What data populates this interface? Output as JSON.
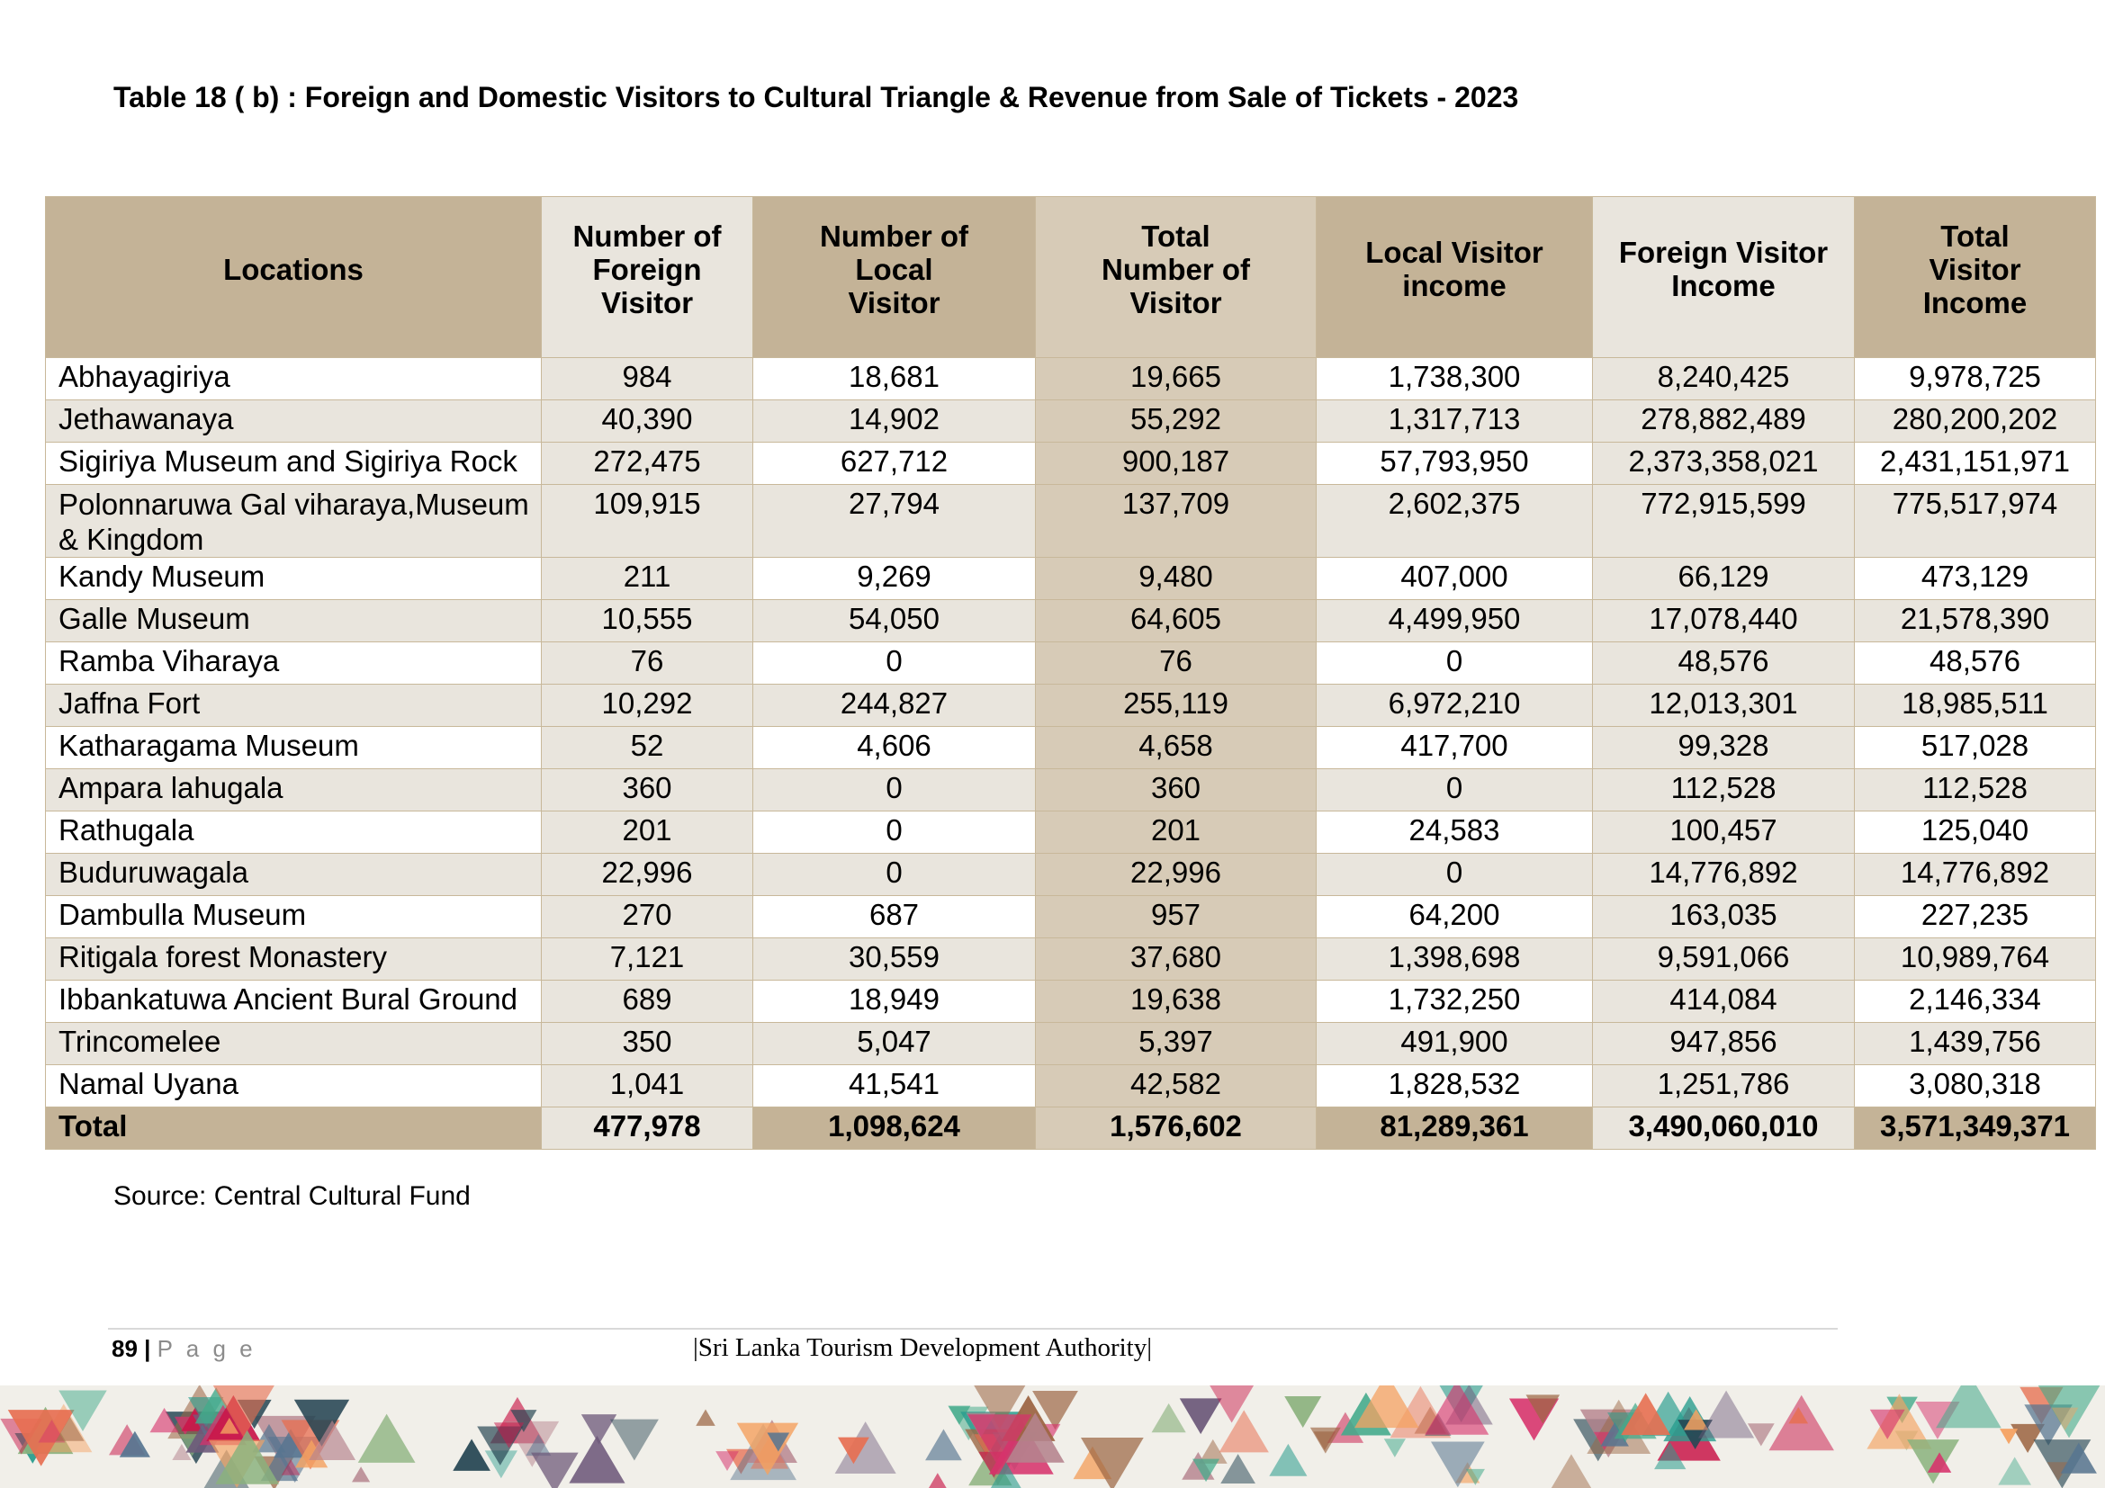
{
  "title": "Table 18 ( b) : Foreign and Domestic Visitors to Cultural Triangle & Revenue from Sale of Tickets - 2023",
  "table": {
    "headers": [
      "Locations",
      "Number of Foreign Visitor",
      "Number of Local Visitor",
      "Total Number of Visitor",
      "Local Visitor income",
      "Foreign Visitor Income",
      "Total Visitor Income"
    ],
    "header_lines": [
      [
        "Locations"
      ],
      [
        "Number of",
        "Foreign",
        "Visitor"
      ],
      [
        "Number of",
        "Local",
        "Visitor"
      ],
      [
        "Total",
        "Number of",
        "Visitor"
      ],
      [
        "Local Visitor",
        "income"
      ],
      [
        "Foreign Visitor",
        "Income"
      ],
      [
        "Total",
        "Visitor",
        "Income"
      ]
    ],
    "rows": [
      [
        "Abhayagiriya",
        "984",
        "18,681",
        "19,665",
        "1,738,300",
        "8,240,425",
        "9,978,725"
      ],
      [
        "Jethawanaya",
        "40,390",
        "14,902",
        "55,292",
        "1,317,713",
        "278,882,489",
        "280,200,202"
      ],
      [
        "Sigiriya Museum and Sigiriya Rock",
        "272,475",
        "627,712",
        "900,187",
        "57,793,950",
        "2,373,358,021",
        "2,431,151,971"
      ],
      [
        "Polonnaruwa Gal viharaya,Museum & Kingdom",
        "109,915",
        "27,794",
        "137,709",
        "2,602,375",
        "772,915,599",
        "775,517,974"
      ],
      [
        "Kandy Museum",
        "211",
        "9,269",
        "9,480",
        "407,000",
        "66,129",
        "473,129"
      ],
      [
        "Galle Museum",
        "10,555",
        "54,050",
        "64,605",
        "4,499,950",
        "17,078,440",
        "21,578,390"
      ],
      [
        "Ramba  Viharaya",
        "76",
        "0",
        "76",
        "0",
        "48,576",
        "48,576"
      ],
      [
        "Jaffna Fort",
        "10,292",
        "244,827",
        "255,119",
        "6,972,210",
        "12,013,301",
        "18,985,511"
      ],
      [
        "Katharagama Museum",
        "52",
        "4,606",
        "4,658",
        "417,700",
        "99,328",
        "517,028"
      ],
      [
        "Ampara lahugala",
        "360",
        "0",
        "360",
        "0",
        "112,528",
        "112,528"
      ],
      [
        "Rathugala",
        "201",
        "0",
        "201",
        "24,583",
        "100,457",
        "125,040"
      ],
      [
        "Buduruwagala",
        "22,996",
        "0",
        "22,996",
        "0",
        "14,776,892",
        "14,776,892"
      ],
      [
        "Dambulla Museum",
        "270",
        "687",
        "957",
        "64,200",
        "163,035",
        "227,235"
      ],
      [
        "Ritigala forest Monastery",
        "7,121",
        "30,559",
        "37,680",
        "1,398,698",
        "9,591,066",
        "10,989,764"
      ],
      [
        "Ibbankatuwa Ancient Bural Ground",
        "689",
        "18,949",
        "19,638",
        "1,732,250",
        "414,084",
        "2,146,334"
      ],
      [
        "Trincomelee",
        "350",
        "5,047",
        "5,397",
        "491,900",
        "947,856",
        "1,439,756"
      ],
      [
        "Namal Uyana",
        "1,041",
        "41,541",
        "42,582",
        "1,828,532",
        "1,251,786",
        "3,080,318"
      ]
    ],
    "total": [
      "Total",
      "477,978",
      "1,098,624",
      "1,576,602",
      "81,289,361",
      "3,490,060,010",
      "3,571,349,371"
    ]
  },
  "source": "Source:  Central Cultural Fund",
  "footer": {
    "page_number": "89",
    "separator": "|",
    "page_label": "P a g e",
    "organization": "|Sri Lanka Tourism Development Authority|"
  },
  "colors": {
    "header_tan": "#c4b397",
    "band_light": "#e9e5dd",
    "band_total_col": "#d7cbb7",
    "border": "#c8b89a"
  }
}
